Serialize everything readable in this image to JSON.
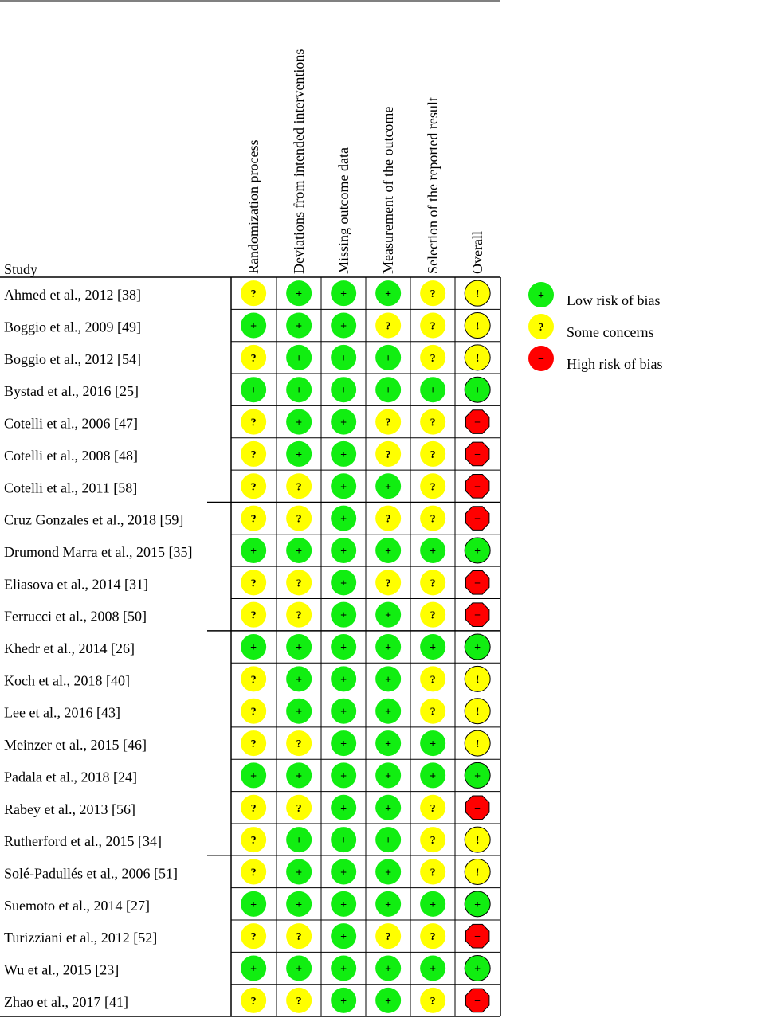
{
  "header": {
    "study_label": "Study"
  },
  "domains": [
    "Randomization process",
    "Deviations from intended interventions",
    "Missing outcome data",
    "Measurement of the outcome",
    "Selection of the reported result",
    "Overall"
  ],
  "ratings": {
    "low": {
      "symbol": "+",
      "fill": "#11ee11",
      "label": "Low risk of bias"
    },
    "some": {
      "symbol": "?",
      "fill": "#ffff00",
      "label": "Some concerns"
    },
    "high": {
      "symbol": "−",
      "fill": "#ff0000",
      "label": "High risk of bias"
    },
    "overall_some_symbol": "!"
  },
  "legend_order": [
    "low",
    "some",
    "high"
  ],
  "studies": [
    {
      "name": "Ahmed et al., 2012 [38]",
      "ratings": [
        "some",
        "low",
        "low",
        "low",
        "some",
        "some"
      ]
    },
    {
      "name": "Boggio et al., 2009 [49]",
      "ratings": [
        "low",
        "low",
        "low",
        "some",
        "some",
        "some"
      ]
    },
    {
      "name": "Boggio et al., 2012 [54]",
      "ratings": [
        "some",
        "low",
        "low",
        "low",
        "some",
        "some"
      ]
    },
    {
      "name": "Bystad et al., 2016 [25]",
      "ratings": [
        "low",
        "low",
        "low",
        "low",
        "low",
        "low"
      ]
    },
    {
      "name": "Cotelli et al., 2006 [47]",
      "ratings": [
        "some",
        "low",
        "low",
        "some",
        "some",
        "high"
      ]
    },
    {
      "name": "Cotelli et al., 2008 [48]",
      "ratings": [
        "some",
        "low",
        "low",
        "some",
        "some",
        "high"
      ]
    },
    {
      "name": "Cotelli et al., 2011 [58]",
      "ratings": [
        "some",
        "some",
        "low",
        "low",
        "some",
        "high"
      ]
    },
    {
      "name": "Cruz Gonzales et al., 2018 [59]",
      "ratings": [
        "some",
        "some",
        "low",
        "some",
        "some",
        "high"
      ]
    },
    {
      "name": "Drumond Marra et al., 2015 [35]",
      "ratings": [
        "low",
        "low",
        "low",
        "low",
        "low",
        "low"
      ]
    },
    {
      "name": "Eliasova et al., 2014 [31]",
      "ratings": [
        "some",
        "some",
        "low",
        "some",
        "some",
        "high"
      ]
    },
    {
      "name": "Ferrucci et al., 2008 [50]",
      "ratings": [
        "some",
        "some",
        "low",
        "low",
        "some",
        "high"
      ]
    },
    {
      "name": "Khedr et al., 2014 [26]",
      "ratings": [
        "low",
        "low",
        "low",
        "low",
        "low",
        "low"
      ]
    },
    {
      "name": "Koch et al., 2018 [40]",
      "ratings": [
        "some",
        "low",
        "low",
        "low",
        "some",
        "some"
      ]
    },
    {
      "name": "Lee et al., 2016 [43]",
      "ratings": [
        "some",
        "low",
        "low",
        "low",
        "some",
        "some"
      ]
    },
    {
      "name": "Meinzer et al., 2015 [46]",
      "ratings": [
        "some",
        "some",
        "low",
        "low",
        "low",
        "some"
      ]
    },
    {
      "name": "Padala et al., 2018 [24]",
      "ratings": [
        "low",
        "low",
        "low",
        "low",
        "low",
        "low"
      ]
    },
    {
      "name": "Rabey et al., 2013 [56]",
      "ratings": [
        "some",
        "some",
        "low",
        "low",
        "some",
        "high"
      ]
    },
    {
      "name": "Rutherford et al., 2015 [34]",
      "ratings": [
        "some",
        "low",
        "low",
        "low",
        "some",
        "some"
      ]
    },
    {
      "name": "Solé-Padullés et al., 2006 [51]",
      "ratings": [
        "some",
        "low",
        "low",
        "low",
        "some",
        "some"
      ]
    },
    {
      "name": "Suemoto et al., 2014 [27]",
      "ratings": [
        "low",
        "low",
        "low",
        "low",
        "low",
        "low"
      ]
    },
    {
      "name": "Turizziani et al., 2012 [52]",
      "ratings": [
        "some",
        "some",
        "low",
        "some",
        "some",
        "high"
      ]
    },
    {
      "name": "Wu et al., 2015 [23]",
      "ratings": [
        "low",
        "low",
        "low",
        "low",
        "low",
        "low"
      ]
    },
    {
      "name": "Zhao et al., 2017 [41]",
      "ratings": [
        "some",
        "some",
        "low",
        "low",
        "some",
        "high"
      ]
    }
  ]
}
